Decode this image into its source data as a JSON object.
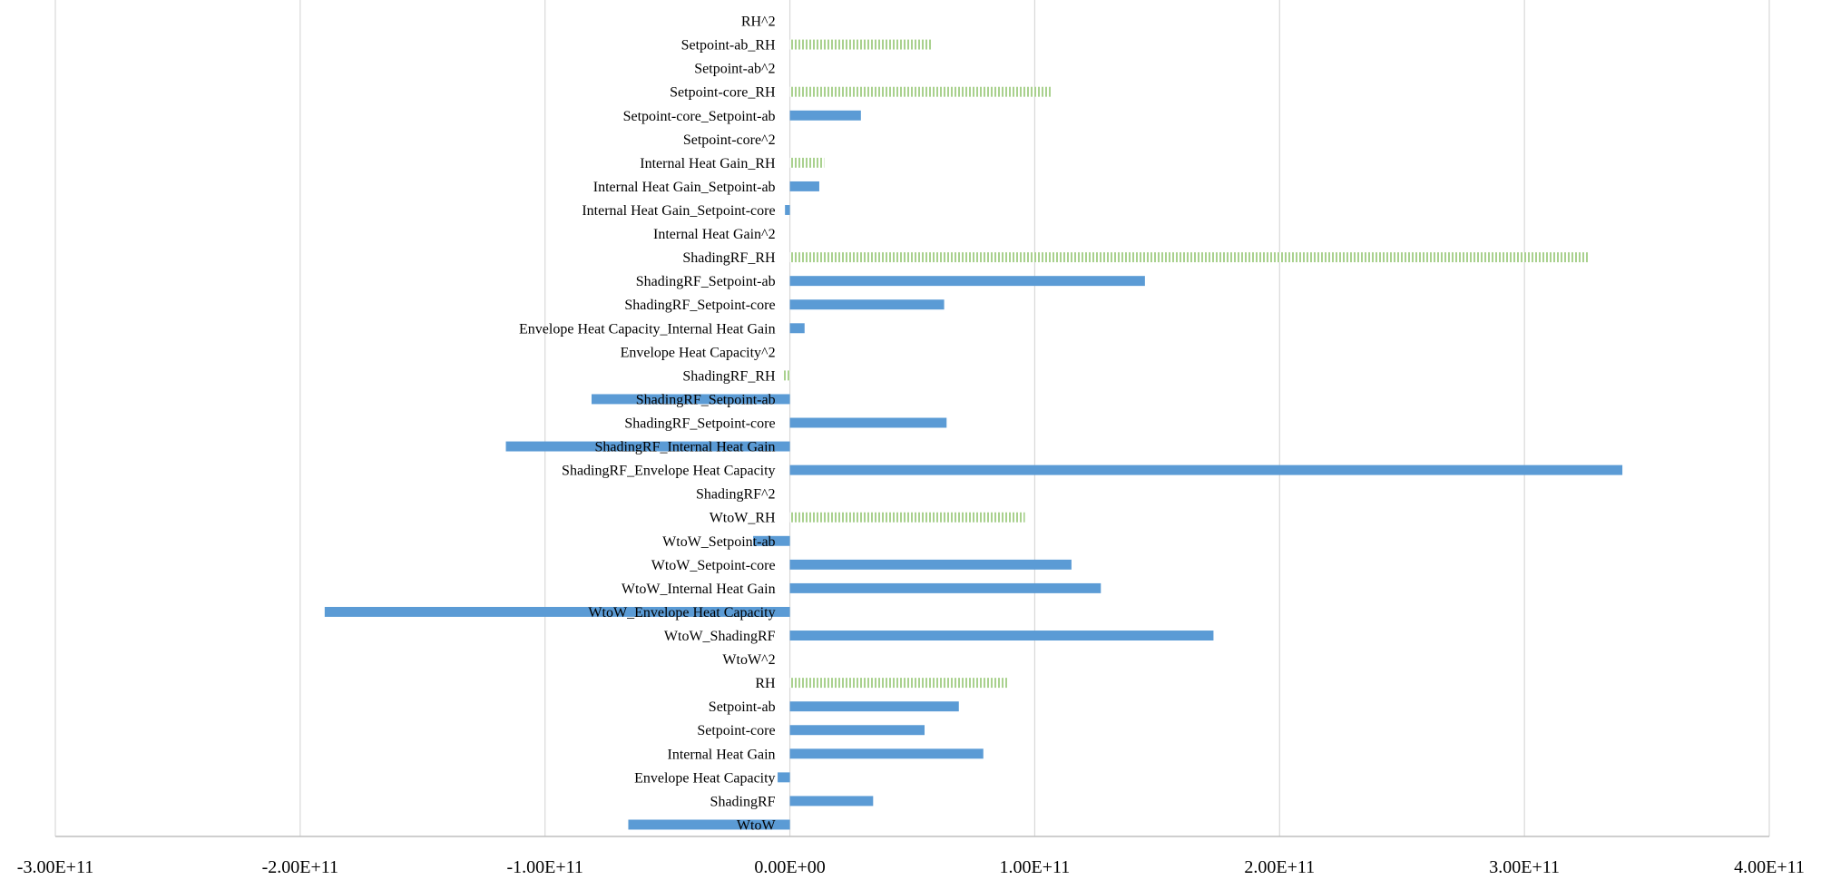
{
  "chart_data": {
    "type": "bar",
    "orientation": "horizontal",
    "title": "",
    "xlabel": "",
    "ylabel": "",
    "xlim": [
      -300000000000,
      400000000000
    ],
    "x_ticks": [
      -300000000000,
      -200000000000,
      -100000000000,
      0,
      100000000000,
      200000000000,
      300000000000,
      400000000000
    ],
    "x_tick_labels": [
      "-3.00E+11",
      "-2.00E+11",
      "-1.00E+11",
      "0.00E+00",
      "1.00E+11",
      "2.00E+11",
      "3.00E+11",
      "4.00E+11"
    ],
    "grid": true,
    "legend": "none",
    "categories": [
      "WtoW",
      "ShadingRF",
      "Envelope Heat Capacity",
      "Internal Heat Gain",
      "Setpoint-core",
      "Setpoint-ab",
      "RH",
      "WtoW^2",
      "WtoW_ShadingRF",
      "WtoW_Envelope Heat Capacity",
      "WtoW_Internal Heat Gain",
      "WtoW_Setpoint-core",
      "WtoW_Setpoint-ab",
      "WtoW_RH",
      "ShadingRF^2",
      "ShadingRF_Envelope Heat Capacity",
      "ShadingRF_Internal Heat Gain",
      "ShadingRF_Setpoint-core",
      "ShadingRF_Setpoint-ab",
      "ShadingRF_RH",
      "Envelope Heat Capacity^2",
      "Envelope Heat Capacity_Internal Heat Gain",
      "ShadingRF_Setpoint-core",
      "ShadingRF_Setpoint-ab",
      "ShadingRF_RH",
      "Internal Heat Gain^2",
      "Internal Heat Gain_Setpoint-core",
      "Internal Heat Gain_Setpoint-ab",
      "Internal Heat Gain_RH",
      "Setpoint-core^2",
      "Setpoint-core_Setpoint-ab",
      "Setpoint-core_RH",
      "Setpoint-ab^2",
      "Setpoint-ab_RH",
      "RH^2"
    ],
    "values": [
      -66000000000,
      34000000000,
      -5000000000,
      79000000000,
      55000000000,
      69000000000,
      89000000000,
      0,
      173000000000,
      -190000000000,
      127000000000,
      115000000000,
      -15000000000,
      96000000000,
      0,
      340000000000,
      -116000000000,
      64000000000,
      -81000000000,
      -3000000000,
      0,
      6000000000,
      63000000000,
      145000000000,
      326000000000,
      0,
      -2000000000,
      12000000000,
      14000000000,
      0,
      29000000000,
      107000000000,
      0,
      58000000000,
      0
    ],
    "series_style": {
      "solid": {
        "name": "solid bars",
        "color": "#5b9bd5"
      },
      "hatched": {
        "name": "hatched bars",
        "color": "#a9d18e"
      }
    },
    "bar_styles": [
      "solid",
      "solid",
      "solid",
      "solid",
      "solid",
      "solid",
      "hatched",
      "solid",
      "solid",
      "solid",
      "solid",
      "solid",
      "solid",
      "hatched",
      "solid",
      "solid",
      "solid",
      "solid",
      "solid",
      "hatched",
      "solid",
      "solid",
      "solid",
      "solid",
      "hatched",
      "solid",
      "solid",
      "solid",
      "hatched",
      "solid",
      "solid",
      "hatched",
      "solid",
      "hatched",
      "solid"
    ]
  }
}
